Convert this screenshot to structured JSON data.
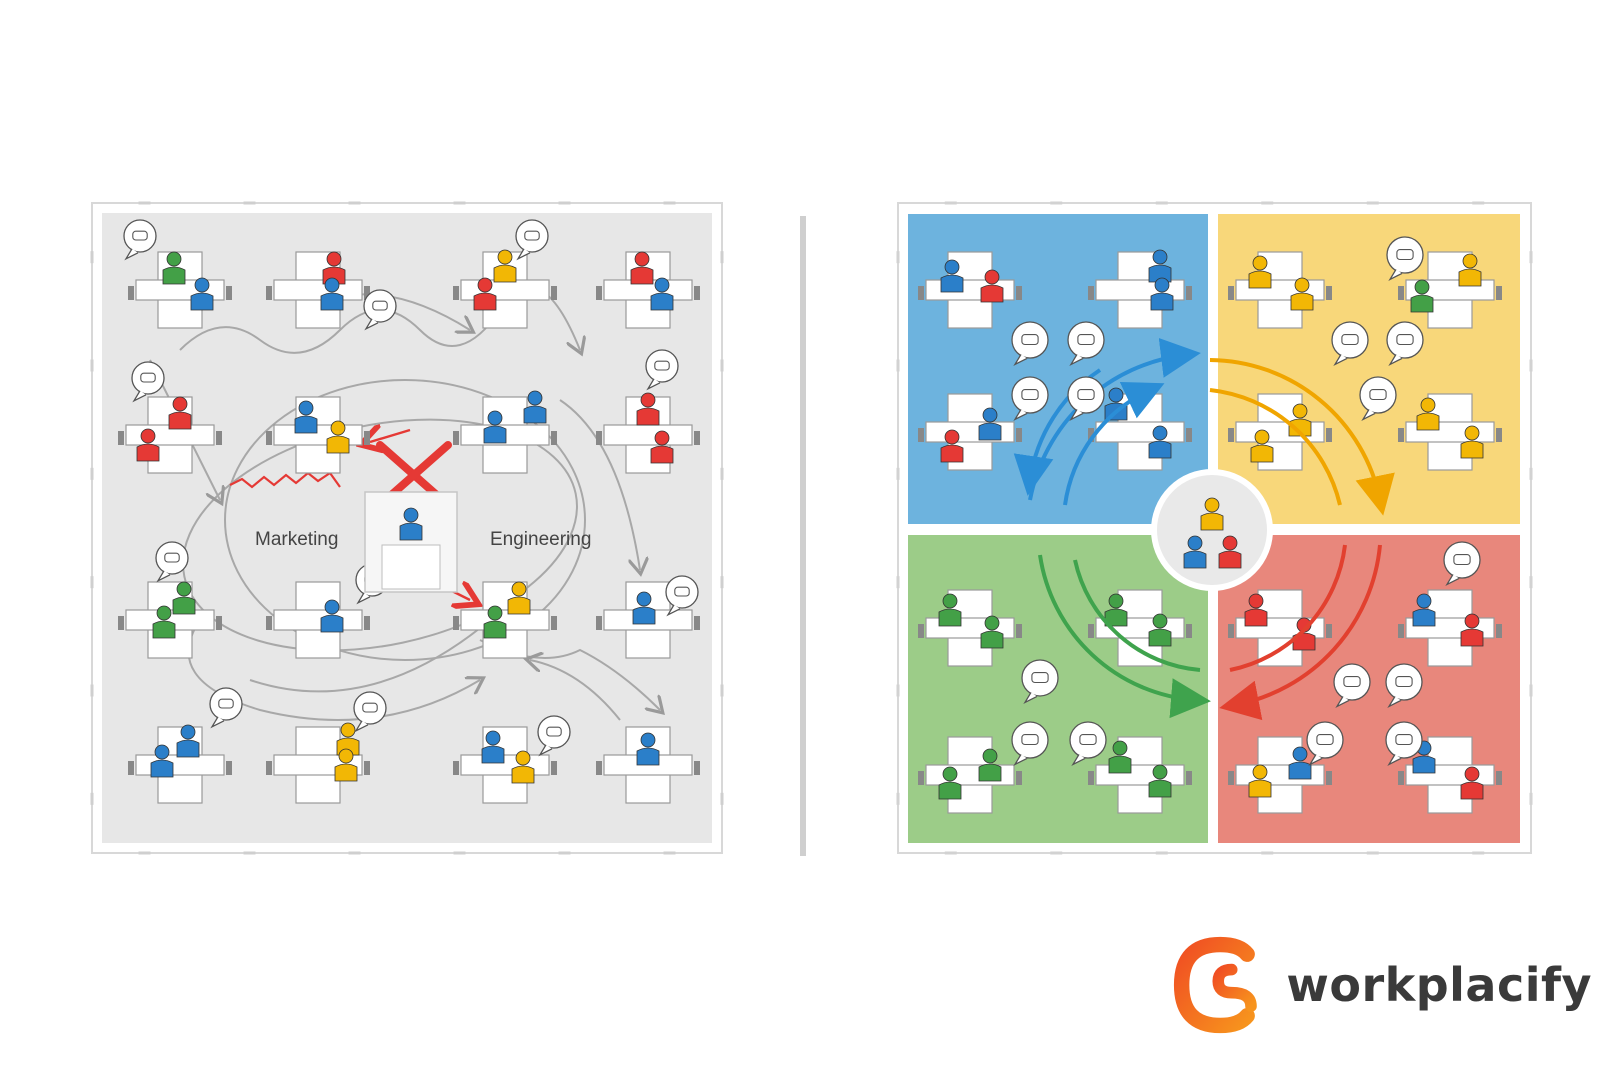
{
  "left_panel": {
    "label_left": "Marketing",
    "label_right": "Engineering"
  },
  "brand": {
    "name": "workplacify",
    "logo_colors": [
      "#f04e23",
      "#f7941d"
    ]
  },
  "colors": {
    "blue": "#2b7fc9",
    "red": "#e53935",
    "green": "#43a047",
    "yellow": "#f2b705",
    "zone_blue": "#6db3de",
    "zone_yellow": "#f8d77a",
    "zone_green": "#9ccc88",
    "zone_red": "#e8877c",
    "floor_gray": "#e6e6e6"
  }
}
